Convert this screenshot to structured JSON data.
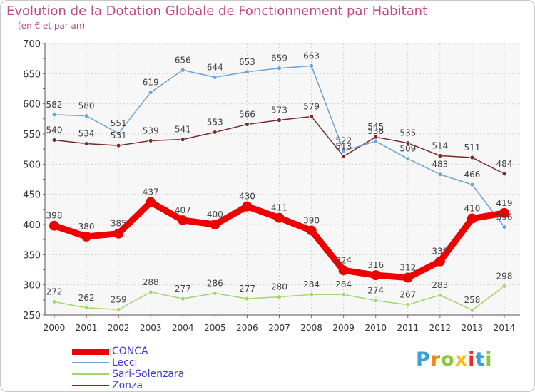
{
  "header": {
    "title": "Evolution de la Dotation Globale de Fonctionnement par Habitant",
    "subtitle": "(en € et par an)"
  },
  "chart_data": {
    "type": "line",
    "categories": [
      "2000",
      "2001",
      "2002",
      "2003",
      "2004",
      "2005",
      "2006",
      "2007",
      "2008",
      "2009",
      "2010",
      "2011",
      "2012",
      "2013",
      "2014"
    ],
    "ylim": [
      250,
      700
    ],
    "yticks": [
      250,
      300,
      350,
      400,
      450,
      500,
      550,
      600,
      650,
      700
    ],
    "grid": true,
    "legend_position": "bottom-left",
    "series": [
      {
        "name": "CONCA",
        "color": "#ee0000",
        "values": [
          398,
          380,
          385,
          437,
          407,
          400,
          430,
          411,
          390,
          324,
          316,
          312,
          339,
          410,
          419
        ],
        "labels": [
          "398",
          "380",
          "385",
          "437",
          "407",
          "400",
          "430",
          "411",
          "390",
          "324",
          "316",
          "312",
          "339",
          "410",
          "419"
        ]
      },
      {
        "name": "Lecci",
        "color": "#6aa4d8",
        "values": [
          582,
          580,
          551,
          619,
          656,
          644,
          653,
          659,
          663,
          522,
          538,
          509,
          483,
          466,
          396
        ],
        "labels": [
          "582",
          "580",
          "551",
          "619",
          "656",
          "644",
          "653",
          "659",
          "663",
          "522",
          "538",
          "509",
          "483",
          "466",
          "396"
        ]
      },
      {
        "name": "Sari-Solenzara",
        "color": "#9fd86a",
        "values": [
          272,
          262,
          259,
          288,
          277,
          286,
          277,
          280,
          284,
          284,
          274,
          267,
          283,
          258,
          298
        ],
        "labels": [
          "272",
          "262",
          "259",
          "288",
          "277",
          "286",
          "277",
          "280",
          "284",
          "284",
          "274",
          "267",
          "283",
          "258",
          "298"
        ]
      },
      {
        "name": "Zonza",
        "color": "#7a2a2a",
        "values": [
          540,
          534,
          531,
          539,
          541,
          553,
          566,
          573,
          579,
          513,
          545,
          535,
          514,
          511,
          484
        ],
        "labels": [
          "540",
          "534",
          "531",
          "539",
          "541",
          "553",
          "566",
          "573",
          "579",
          "513",
          "545",
          "535",
          "514",
          "511",
          "484"
        ]
      }
    ]
  },
  "logo": {
    "letters": [
      "P",
      "r",
      "o",
      "x",
      "i",
      "t",
      "i"
    ],
    "colors": [
      "#3aa0d8",
      "#ef8a1a",
      "#8cc83c",
      "#f0c020",
      "#e03030",
      "#3aa0d8",
      "#8cc83c"
    ]
  }
}
